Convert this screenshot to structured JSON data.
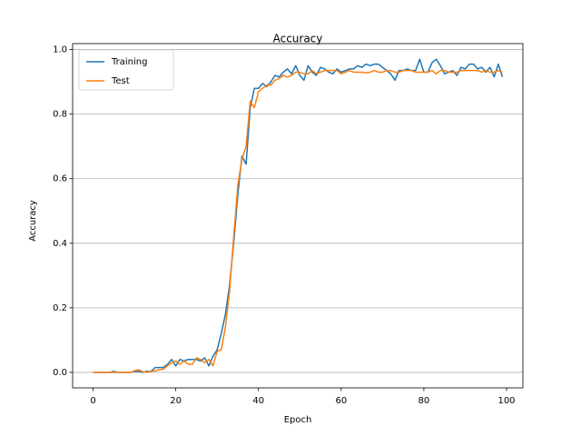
{
  "chart_data": {
    "type": "line",
    "title": "Accuracy",
    "x_label": "Epoch",
    "y_label": "Accuracy",
    "x": [
      0,
      1,
      2,
      3,
      4,
      5,
      6,
      7,
      8,
      9,
      10,
      11,
      12,
      13,
      14,
      15,
      16,
      17,
      18,
      19,
      20,
      21,
      22,
      23,
      24,
      25,
      26,
      27,
      28,
      29,
      30,
      31,
      32,
      33,
      34,
      35,
      36,
      37,
      38,
      39,
      40,
      41,
      42,
      43,
      44,
      45,
      46,
      47,
      48,
      49,
      50,
      51,
      52,
      53,
      54,
      55,
      56,
      57,
      58,
      59,
      60,
      61,
      62,
      63,
      64,
      65,
      66,
      67,
      68,
      69,
      70,
      71,
      72,
      73,
      74,
      75,
      76,
      77,
      78,
      79,
      80,
      81,
      82,
      83,
      84,
      85,
      86,
      87,
      88,
      89,
      90,
      91,
      92,
      93,
      94,
      95,
      96,
      97,
      98,
      99
    ],
    "series": [
      {
        "name": "Training",
        "color": "#1f77b4",
        "values": [
          0,
          0,
          0,
          0,
          0,
          0.003,
          0,
          0,
          0,
          0,
          0.003,
          0.003,
          0,
          0.003,
          0.003,
          0.015,
          0.015,
          0.015,
          0.025,
          0.04,
          0.02,
          0.04,
          0.035,
          0.04,
          0.04,
          0.04,
          0.035,
          0.045,
          0.02,
          0.05,
          0.07,
          0.12,
          0.18,
          0.27,
          0.4,
          0.55,
          0.67,
          0.645,
          0.82,
          0.88,
          0.88,
          0.895,
          0.885,
          0.9,
          0.92,
          0.915,
          0.93,
          0.94,
          0.925,
          0.95,
          0.92,
          0.905,
          0.95,
          0.93,
          0.92,
          0.945,
          0.94,
          0.93,
          0.925,
          0.94,
          0.93,
          0.935,
          0.94,
          0.94,
          0.95,
          0.945,
          0.955,
          0.95,
          0.955,
          0.955,
          0.945,
          0.935,
          0.925,
          0.905,
          0.935,
          0.935,
          0.94,
          0.935,
          0.935,
          0.97,
          0.93,
          0.93,
          0.96,
          0.97,
          0.95,
          0.925,
          0.93,
          0.935,
          0.92,
          0.945,
          0.94,
          0.955,
          0.955,
          0.94,
          0.945,
          0.93,
          0.945,
          0.915,
          0.955,
          0.915
        ]
      },
      {
        "name": "Test",
        "color": "#ff7f0e",
        "values": [
          0,
          0,
          0,
          0,
          0,
          0,
          0,
          0,
          0,
          0,
          0.005,
          0.008,
          0.002,
          0,
          0.003,
          0.005,
          0.008,
          0.01,
          0.02,
          0.03,
          0.035,
          0.025,
          0.035,
          0.025,
          0.025,
          0.045,
          0.04,
          0.03,
          0.04,
          0.02,
          0.065,
          0.07,
          0.14,
          0.25,
          0.42,
          0.58,
          0.66,
          0.7,
          0.84,
          0.82,
          0.87,
          0.88,
          0.89,
          0.89,
          0.905,
          0.91,
          0.92,
          0.915,
          0.92,
          0.93,
          0.93,
          0.925,
          0.925,
          0.935,
          0.925,
          0.93,
          0.935,
          0.935,
          0.935,
          0.935,
          0.925,
          0.93,
          0.935,
          0.93,
          0.93,
          0.93,
          0.928,
          0.93,
          0.935,
          0.93,
          0.93,
          0.935,
          0.935,
          0.93,
          0.93,
          0.935,
          0.935,
          0.935,
          0.93,
          0.93,
          0.93,
          0.93,
          0.935,
          0.925,
          0.935,
          0.935,
          0.93,
          0.93,
          0.93,
          0.935,
          0.935,
          0.935,
          0.935,
          0.935,
          0.93,
          0.935,
          0.93,
          0.93,
          0.935,
          0.93
        ]
      }
    ],
    "xlim": [
      -4.95,
      103.95
    ],
    "ylim": [
      -0.048,
      1.0185
    ],
    "xticks": [
      0,
      20,
      40,
      60,
      80,
      100
    ],
    "yticks": [
      {
        "value": 0,
        "label": "0.0"
      },
      {
        "value": 0.2,
        "label": "0.2"
      },
      {
        "value": 0.4,
        "label": "0.4"
      },
      {
        "value": 0.6,
        "label": "0.6"
      },
      {
        "value": 0.8,
        "label": "0.8"
      },
      {
        "value": 1,
        "label": "1.0"
      }
    ],
    "grid": "y",
    "legend": "upper left"
  }
}
